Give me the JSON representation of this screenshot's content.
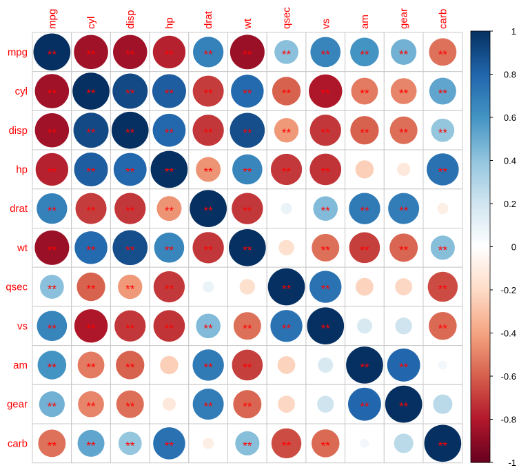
{
  "chart_data": {
    "type": "heatmap",
    "style": "corrplot-circle",
    "variables": [
      "mpg",
      "cyl",
      "disp",
      "hp",
      "drat",
      "wt",
      "qsec",
      "vs",
      "am",
      "gear",
      "carb"
    ],
    "matrix": [
      [
        1,
        -0.852,
        -0.848,
        -0.776,
        0.681,
        -0.868,
        0.419,
        0.664,
        0.6,
        0.48,
        -0.551
      ],
      [
        -0.852,
        1,
        0.902,
        0.832,
        -0.7,
        0.782,
        -0.591,
        -0.811,
        -0.523,
        -0.493,
        0.527
      ],
      [
        -0.848,
        0.902,
        1,
        0.791,
        -0.71,
        0.888,
        -0.434,
        -0.71,
        -0.591,
        -0.556,
        0.395
      ],
      [
        -0.776,
        0.832,
        0.791,
        1,
        -0.449,
        0.659,
        -0.708,
        -0.723,
        -0.243,
        -0.126,
        0.75
      ],
      [
        0.681,
        -0.7,
        -0.71,
        -0.449,
        1,
        -0.712,
        0.091,
        0.44,
        0.713,
        0.7,
        -0.091
      ],
      [
        -0.868,
        0.782,
        0.888,
        0.659,
        -0.712,
        1,
        -0.175,
        -0.555,
        -0.692,
        -0.583,
        0.428
      ],
      [
        0.419,
        -0.591,
        -0.434,
        -0.708,
        0.091,
        -0.175,
        1,
        0.745,
        -0.23,
        -0.213,
        -0.656
      ],
      [
        0.664,
        -0.811,
        -0.71,
        -0.723,
        0.44,
        -0.555,
        0.745,
        1,
        0.168,
        0.206,
        -0.57
      ],
      [
        0.6,
        -0.523,
        -0.591,
        -0.243,
        0.713,
        -0.692,
        -0.23,
        0.168,
        1,
        0.794,
        0.058
      ],
      [
        0.48,
        -0.493,
        -0.556,
        -0.126,
        0.7,
        -0.583,
        -0.213,
        0.206,
        0.794,
        1,
        0.274
      ],
      [
        -0.551,
        0.527,
        0.395,
        0.75,
        -0.091,
        0.428,
        -0.656,
        -0.57,
        0.058,
        0.274,
        1
      ]
    ],
    "significant": [
      [
        1,
        1,
        1,
        1,
        1,
        1,
        1,
        1,
        1,
        1,
        1
      ],
      [
        1,
        1,
        1,
        1,
        1,
        1,
        1,
        1,
        1,
        1,
        1
      ],
      [
        1,
        1,
        1,
        1,
        1,
        1,
        1,
        1,
        1,
        1,
        1
      ],
      [
        1,
        1,
        1,
        1,
        1,
        1,
        1,
        1,
        0,
        0,
        1
      ],
      [
        1,
        1,
        1,
        1,
        1,
        1,
        0,
        1,
        1,
        1,
        0
      ],
      [
        1,
        1,
        1,
        1,
        1,
        1,
        0,
        1,
        1,
        1,
        1
      ],
      [
        1,
        1,
        1,
        1,
        0,
        0,
        1,
        1,
        0,
        0,
        1
      ],
      [
        1,
        1,
        1,
        1,
        1,
        1,
        1,
        1,
        0,
        0,
        1
      ],
      [
        1,
        1,
        1,
        0,
        1,
        1,
        0,
        0,
        1,
        1,
        0
      ],
      [
        1,
        1,
        1,
        0,
        1,
        1,
        0,
        0,
        1,
        1,
        0
      ],
      [
        1,
        1,
        1,
        1,
        0,
        1,
        1,
        1,
        0,
        0,
        1
      ]
    ],
    "sig_label": "**",
    "colorbar": {
      "range": [
        -1,
        1
      ],
      "ticks": [
        "1",
        "0.8",
        "0.6",
        "0.4",
        "0.2",
        "0",
        "-0.2",
        "-0.4",
        "-0.6",
        "-0.8",
        "-1"
      ],
      "palette": [
        "#67001F",
        "#B2182B",
        "#D6604D",
        "#F4A582",
        "#FDDBC7",
        "#FFFFFF",
        "#D1E5F0",
        "#92C5DE",
        "#4393C3",
        "#2166AC",
        "#053061"
      ]
    },
    "label_color": "#FF0000"
  }
}
